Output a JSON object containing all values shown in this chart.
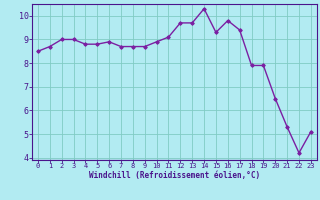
{
  "x": [
    0,
    1,
    2,
    3,
    4,
    5,
    6,
    7,
    8,
    9,
    10,
    11,
    12,
    13,
    14,
    15,
    16,
    17,
    18,
    19,
    20,
    21,
    22,
    23
  ],
  "y": [
    8.5,
    8.7,
    9.0,
    9.0,
    8.8,
    8.8,
    8.9,
    8.7,
    8.7,
    8.7,
    8.9,
    9.1,
    9.7,
    9.7,
    10.3,
    9.3,
    9.8,
    9.4,
    7.9,
    7.9,
    6.5,
    5.3,
    4.2,
    5.1
  ],
  "line_color": "#7b1fa2",
  "marker": "D",
  "marker_size": 1.8,
  "bg_color": "#b2ebf2",
  "grid_color": "#80cbc4",
  "ylim_min": 3.9,
  "ylim_max": 10.5,
  "xlim_min": -0.5,
  "xlim_max": 23.5,
  "yticks": [
    4,
    5,
    6,
    7,
    8,
    9,
    10
  ],
  "xticks": [
    0,
    1,
    2,
    3,
    4,
    5,
    6,
    7,
    8,
    9,
    10,
    11,
    12,
    13,
    14,
    15,
    16,
    17,
    18,
    19,
    20,
    21,
    22,
    23
  ],
  "tick_color": "#4a148c",
  "label_color": "#4a148c",
  "axis_color": "#4a148c",
  "xlabel": "Windchill (Refroidissement éolien,°C)",
  "xlabel_fontsize": 5.5,
  "tick_fontsize_x": 5.0,
  "tick_fontsize_y": 6.0,
  "font_family": "monospace",
  "linewidth": 1.0
}
